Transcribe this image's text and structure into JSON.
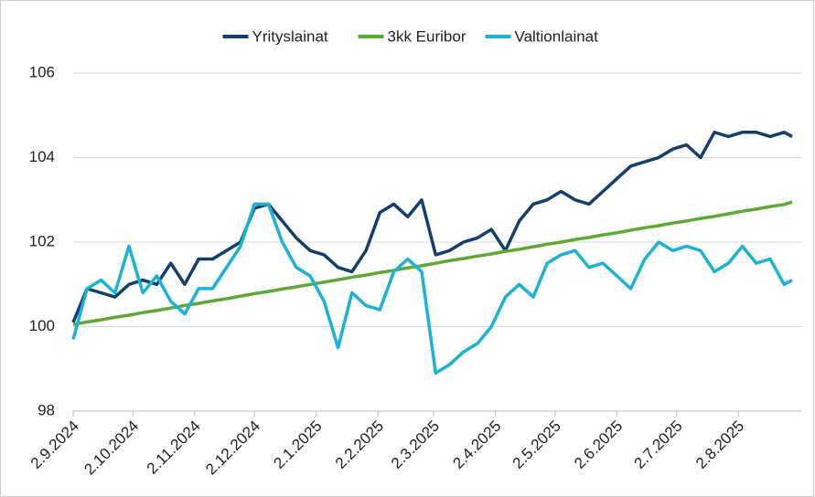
{
  "chart_data": {
    "type": "line",
    "x": [
      "2.9.2024",
      "9.9.2024",
      "16.9.2024",
      "23.9.2024",
      "30.9.2024",
      "7.10.2024",
      "14.10.2024",
      "21.10.2024",
      "28.10.2024",
      "4.11.2024",
      "11.11.2024",
      "18.11.2024",
      "25.11.2024",
      "2.12.2024",
      "9.12.2024",
      "16.12.2024",
      "23.12.2024",
      "30.12.2024",
      "6.1.2025",
      "13.1.2025",
      "20.1.2025",
      "27.1.2025",
      "3.2.2025",
      "10.2.2025",
      "17.2.2025",
      "24.2.2025",
      "3.3.2025",
      "10.3.2025",
      "17.3.2025",
      "24.3.2025",
      "31.3.2025",
      "7.4.2025",
      "14.4.2025",
      "21.4.2025",
      "28.4.2025",
      "5.5.2025",
      "12.5.2025",
      "19.5.2025",
      "26.5.2025",
      "2.6.2025",
      "9.6.2025",
      "16.6.2025",
      "23.6.2025",
      "30.6.2025",
      "7.7.2025",
      "14.7.2025",
      "21.7.2025",
      "28.7.2025",
      "4.8.2025",
      "11.8.2025",
      "18.8.2025",
      "25.8.2025",
      "29.8.2025"
    ],
    "series": [
      {
        "name": "Yrityslainat",
        "color": "#123f6e",
        "values": [
          100.1,
          100.9,
          100.8,
          100.7,
          101.0,
          101.1,
          101.0,
          101.5,
          101.0,
          101.6,
          101.6,
          101.8,
          102.0,
          102.8,
          102.9,
          102.5,
          102.1,
          101.8,
          101.7,
          101.4,
          101.3,
          101.8,
          102.7,
          102.9,
          102.6,
          103.0,
          101.7,
          101.8,
          102.0,
          102.1,
          102.3,
          101.8,
          102.5,
          102.9,
          103.0,
          103.2,
          103.0,
          102.9,
          103.2,
          103.5,
          103.8,
          103.9,
          104.0,
          104.2,
          104.3,
          104.0,
          104.6,
          104.5,
          104.6,
          104.6,
          104.5,
          104.6,
          104.5
        ]
      },
      {
        "name": "3kk Euribor",
        "color": "#5aab32",
        "values": [
          100.05,
          100.11,
          100.16,
          100.22,
          100.27,
          100.33,
          100.38,
          100.44,
          100.5,
          100.55,
          100.61,
          100.66,
          100.72,
          100.78,
          100.83,
          100.89,
          100.94,
          101.0,
          101.05,
          101.11,
          101.17,
          101.22,
          101.28,
          101.33,
          101.39,
          101.44,
          101.5,
          101.56,
          101.61,
          101.67,
          101.72,
          101.78,
          101.83,
          101.89,
          101.95,
          102.0,
          102.06,
          102.11,
          102.17,
          102.22,
          102.28,
          102.34,
          102.39,
          102.45,
          102.5,
          102.56,
          102.61,
          102.67,
          102.73,
          102.78,
          102.84,
          102.89,
          102.95
        ]
      },
      {
        "name": "Valtionlainat",
        "color": "#19b3d8",
        "values": [
          99.7,
          100.9,
          101.1,
          100.8,
          101.9,
          100.8,
          101.2,
          100.6,
          100.3,
          100.9,
          100.9,
          101.4,
          101.9,
          102.9,
          102.9,
          102.0,
          101.4,
          101.2,
          100.6,
          99.5,
          100.8,
          100.5,
          100.4,
          101.3,
          101.6,
          101.3,
          98.9,
          99.1,
          99.4,
          99.6,
          100.0,
          100.7,
          101.0,
          100.7,
          101.5,
          101.7,
          101.8,
          101.4,
          101.5,
          101.2,
          100.9,
          101.6,
          102.0,
          101.8,
          101.9,
          101.8,
          101.3,
          101.5,
          101.9,
          101.5,
          101.6,
          101.0,
          101.1
        ]
      }
    ],
    "xlim": [
      "2.9.2024",
      "29.8.2025"
    ],
    "xticks": [
      "2.9.2024",
      "2.10.2024",
      "2.11.2024",
      "2.12.2024",
      "2.1.2025",
      "2.2.2025",
      "2.3.2025",
      "2.4.2025",
      "2.5.2025",
      "2.6.2025",
      "2.7.2025",
      "2.8.2025"
    ],
    "ylim": [
      98,
      106
    ],
    "yticks": [
      98,
      100,
      102,
      104,
      106
    ],
    "grid": true,
    "legend": "top"
  }
}
